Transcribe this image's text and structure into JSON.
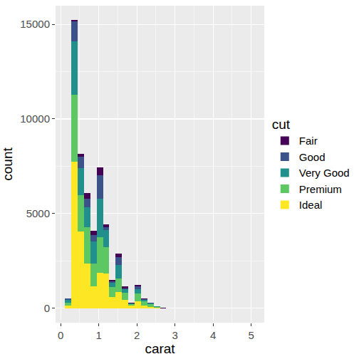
{
  "chart_data": {
    "type": "histogram",
    "stacked": true,
    "xlabel": "carat",
    "ylabel": "count",
    "legend": "right",
    "legend_title": "cut",
    "grid": true,
    "bins": [
      0.117,
      0.283,
      0.449,
      0.615,
      0.781,
      0.946,
      1.112,
      1.278,
      1.444,
      1.61,
      1.776,
      1.941,
      2.107,
      2.273,
      2.439,
      2.605,
      2.771,
      2.937,
      3.102,
      3.268,
      3.434,
      3.6,
      3.766,
      3.932,
      4.097,
      4.263,
      4.429,
      4.595,
      4.761,
      4.927,
      5.093
    ],
    "series": [
      {
        "name": "Fair",
        "color": "#440154",
        "values": [
          10,
          70,
          150,
          300,
          220,
          420,
          150,
          70,
          180,
          120,
          10,
          70,
          30,
          20,
          10,
          4,
          3,
          1,
          2,
          0,
          0,
          0,
          0,
          0,
          0,
          0,
          0,
          0,
          0,
          1
        ]
      },
      {
        "name": "Good",
        "color": "#3B528B",
        "values": [
          60,
          1050,
          630,
          440,
          370,
          1230,
          150,
          80,
          410,
          30,
          10,
          150,
          40,
          20,
          10,
          1,
          1,
          0,
          1,
          0,
          0,
          0,
          0,
          0,
          1,
          0,
          0,
          0,
          0,
          0
        ]
      },
      {
        "name": "Very Good",
        "color": "#21908C",
        "values": [
          170,
          2840,
          1420,
          1050,
          1160,
          2010,
          930,
          220,
          710,
          190,
          40,
          230,
          80,
          40,
          20,
          2,
          1,
          1,
          1,
          0,
          0,
          0,
          0,
          0,
          1,
          0,
          0,
          0,
          0,
          0
        ]
      },
      {
        "name": "Premium",
        "color": "#5DC863",
        "values": [
          130,
          3540,
          1900,
          1940,
          1190,
          1900,
          1380,
          520,
          710,
          370,
          70,
          410,
          220,
          145,
          50,
          3,
          3,
          1,
          0,
          1,
          0,
          0,
          0,
          0,
          0,
          0,
          0,
          0,
          0,
          0
        ]
      },
      {
        "name": "Ideal",
        "color": "#FDE725",
        "values": [
          150,
          7724,
          4070,
          2350,
          1160,
          1870,
          1830,
          600,
          860,
          450,
          150,
          370,
          150,
          75,
          20,
          2,
          1,
          0,
          0,
          0,
          0,
          0,
          0,
          0,
          0,
          0,
          0,
          0,
          0,
          0
        ]
      }
    ],
    "xlim": [
      -0.132,
      5.342
    ],
    "xticks": [
      0,
      1,
      2,
      3,
      4,
      5
    ],
    "ylim": [
      -761,
      15981
    ],
    "yticks": [
      0,
      5000,
      10000,
      15000
    ]
  }
}
